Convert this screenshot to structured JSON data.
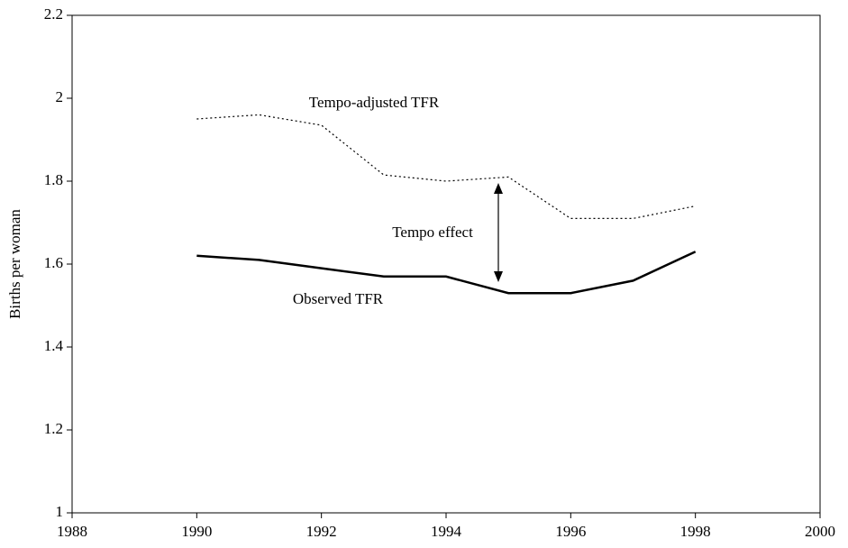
{
  "chart_data": {
    "type": "line",
    "ylabel": "Births per woman",
    "x": [
      1990,
      1991,
      1992,
      1993,
      1994,
      1995,
      1996,
      1997,
      1998
    ],
    "series": [
      {
        "name": "Tempo-adjusted TFR",
        "color": "#000000",
        "style": "dotted",
        "values": [
          1.95,
          1.96,
          1.935,
          1.815,
          1.8,
          1.81,
          1.71,
          1.71,
          1.74
        ]
      },
      {
        "name": "Observed TFR",
        "color": "#000000",
        "style": "solid",
        "values": [
          1.62,
          1.61,
          1.59,
          1.57,
          1.57,
          1.53,
          1.53,
          1.56,
          1.63
        ]
      }
    ],
    "annotations": [
      "Tempo effect"
    ],
    "xlim": [
      1988,
      2000
    ],
    "xticks": [
      1988,
      1990,
      1992,
      1994,
      1996,
      1998,
      2000
    ],
    "ylim": [
      1,
      2.2
    ],
    "yticks": [
      1,
      1.2,
      1.4,
      1.6,
      1.8,
      2,
      2.2
    ]
  }
}
